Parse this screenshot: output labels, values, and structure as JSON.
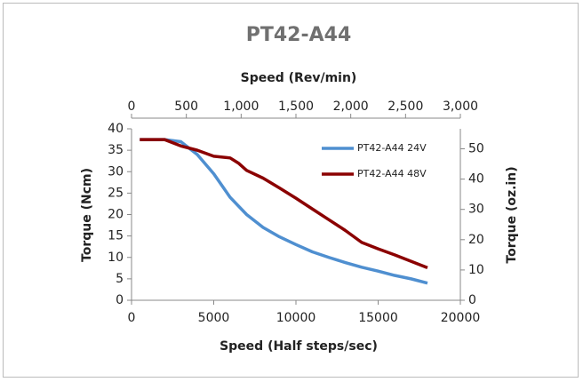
{
  "chart_data": {
    "type": "line",
    "title": "PT42-A44",
    "xlabel": "Speed (Half steps/sec)",
    "x2label": "Speed (Rev/min)",
    "ylabel": "Torque (Ncm)",
    "y2label": "Torque (oz.in)",
    "xlim": [
      0,
      20000
    ],
    "xticks": [
      0,
      5000,
      10000,
      15000,
      20000
    ],
    "x2lim": [
      0,
      3000
    ],
    "x2ticks": [
      0,
      500,
      {
        "value": 1000,
        "label": "1,000"
      },
      {
        "value": 1500,
        "label": "1,500"
      },
      {
        "value": 2000,
        "label": "2,000"
      },
      {
        "value": 2500,
        "label": "2,500"
      },
      {
        "value": 3000,
        "label": "3,000"
      }
    ],
    "ylim": [
      0,
      40
    ],
    "yticks": [
      0,
      5,
      10,
      15,
      20,
      25,
      30,
      35,
      40
    ],
    "y2lim": [
      0,
      56.6
    ],
    "y2ticks": [
      0,
      10,
      20,
      30,
      40,
      50
    ],
    "grid": false,
    "legend": "upper right",
    "series": [
      {
        "name": "PT42-A44 24V",
        "color": "#4f8fd0",
        "x": [
          500,
          1000,
          2000,
          3000,
          4000,
          5000,
          6000,
          7000,
          8000,
          9000,
          10000,
          11000,
          12000,
          13000,
          14000,
          15000,
          16000,
          17000,
          18000
        ],
        "values": [
          37.5,
          37.5,
          37.5,
          37,
          34,
          29.5,
          24,
          20,
          17,
          14.8,
          13,
          11.3,
          10,
          8.8,
          7.7,
          6.8,
          5.8,
          5,
          4
        ]
      },
      {
        "name": "PT42-A44 48V",
        "color": "#8b0000",
        "x": [
          500,
          2000,
          3000,
          4000,
          5000,
          6000,
          6500,
          7000,
          8000,
          9000,
          10000,
          11000,
          12000,
          13000,
          14000,
          15000,
          16000,
          17000,
          18000
        ],
        "values": [
          37.5,
          37.5,
          36,
          35,
          33.6,
          33.2,
          32,
          30.3,
          28.5,
          26.2,
          23.8,
          21.3,
          18.8,
          16.3,
          13.5,
          12,
          10.6,
          9.1,
          7.6
        ]
      }
    ]
  }
}
